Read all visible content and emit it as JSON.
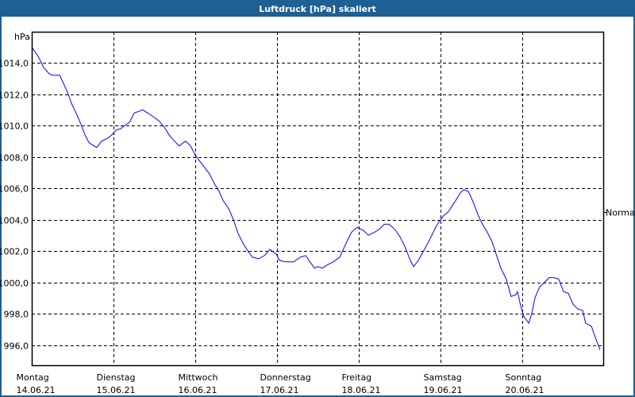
{
  "title": "Luftdruck [hPa] skaliert",
  "chart_data": {
    "type": "line",
    "title": "Luftdruck [hPa] skaliert",
    "ylabel": "hPa",
    "xlabel": "",
    "ylim": [
      995.0,
      1016.0
    ],
    "xlim_hours": [
      0,
      168
    ],
    "yticks": [
      1014,
      1012,
      1010,
      1008,
      1006,
      1004,
      1002,
      1000,
      998,
      996
    ],
    "ytick_labels": [
      "1014,0",
      "1012,0",
      "1010,0",
      "1008,0",
      "1006,0",
      "1004,0",
      "1002,0",
      "1000,0",
      "998,0",
      "996,0"
    ],
    "xticks": [
      {
        "day": "Montag",
        "date": "14.06.21",
        "hour": 0
      },
      {
        "day": "Dienstag",
        "date": "15.06.21",
        "hour": 24
      },
      {
        "day": "Mittwoch",
        "date": "16.06.21",
        "hour": 48
      },
      {
        "day": "Donnerstag",
        "date": "17.06.21",
        "hour": 72
      },
      {
        "day": "Freitag",
        "date": "18.06.21",
        "hour": 96
      },
      {
        "day": "Samstag",
        "date": "19.06.21",
        "hour": 120
      },
      {
        "day": "Sonntag",
        "date": "20.06.21",
        "hour": 144
      }
    ],
    "grid": true,
    "normal_label": "Normal",
    "normal_value": 1004.5,
    "series": [
      {
        "name": "Luftdruck",
        "color": "#0000ff",
        "x": [
          0,
          1.9,
          3.5,
          5.1,
          6.1,
          8.2,
          9.3,
          10.5,
          11.7,
          13.0,
          14.4,
          15.6,
          16.8,
          18.2,
          19.1,
          20.5,
          22.4,
          23.5,
          24.7,
          26.1,
          27.3,
          28.7,
          30.1,
          31.5,
          32.6,
          34.0,
          35.4,
          37.3,
          38.9,
          40.3,
          41.9,
          43.3,
          44.5,
          45.2,
          46.6,
          48.0,
          49.4,
          50.8,
          52.2,
          53.6,
          55.0,
          56.2,
          57.8,
          59.0,
          60.6,
          62.0,
          63.4,
          64.8,
          66.6,
          68.3,
          69.9,
          71.8,
          72.7,
          74.6,
          76.9,
          78.8,
          80.4,
          82.0,
          83.0,
          83.9,
          85.3,
          86.7,
          88.5,
          90.4,
          92.3,
          93.9,
          95.5,
          97.4,
          98.8,
          100.7,
          102.1,
          103.5,
          104.9,
          106.5,
          108.1,
          109.7,
          111.1,
          112.1,
          113.5,
          115.3,
          117.0,
          118.8,
          120.7,
          122.3,
          123.5,
          124.7,
          125.8,
          126.8,
          128.2,
          129.6,
          131.0,
          132.3,
          133.7,
          135.1,
          136.3,
          137.7,
          139.3,
          140.7,
          142.1,
          142.6,
          143.5,
          144.5,
          145.9,
          146.8,
          147.7,
          149.1,
          150.5,
          151.9,
          153.3,
          154.7,
          156.1,
          157.5,
          158.9,
          160.3,
          161.7,
          162.6,
          164.3,
          165.4,
          166.8
        ],
        "y": [
          1015.0,
          1014.4,
          1013.7,
          1013.3,
          1013.2,
          1013.2,
          1012.7,
          1012.1,
          1011.4,
          1010.8,
          1010.1,
          1009.4,
          1008.9,
          1008.7,
          1008.6,
          1009.0,
          1009.2,
          1009.4,
          1009.7,
          1009.8,
          1010.0,
          1010.2,
          1010.8,
          1010.9,
          1011.0,
          1010.8,
          1010.6,
          1010.3,
          1009.9,
          1009.4,
          1009.0,
          1008.7,
          1008.9,
          1009.0,
          1008.7,
          1008.1,
          1007.7,
          1007.3,
          1006.9,
          1006.3,
          1005.8,
          1005.2,
          1004.7,
          1004.1,
          1003.1,
          1002.5,
          1002.0,
          1001.6,
          1001.5,
          1001.7,
          1002.1,
          1001.8,
          1001.4,
          1001.3,
          1001.3,
          1001.6,
          1001.7,
          1001.2,
          1000.9,
          1001.0,
          1000.9,
          1001.1,
          1001.3,
          1001.6,
          1002.5,
          1003.2,
          1003.5,
          1003.3,
          1003.0,
          1003.2,
          1003.4,
          1003.7,
          1003.7,
          1003.4,
          1002.9,
          1002.2,
          1001.4,
          1001.0,
          1001.4,
          1002.1,
          1002.8,
          1003.6,
          1004.2,
          1004.5,
          1004.9,
          1005.3,
          1005.7,
          1005.9,
          1005.8,
          1005.1,
          1004.3,
          1003.7,
          1003.2,
          1002.6,
          1001.8,
          1000.9,
          1000.2,
          999.1,
          999.2,
          999.4,
          998.5,
          997.8,
          997.4,
          998.0,
          999.0,
          999.7,
          1000.0,
          1000.3,
          1000.3,
          1000.2,
          999.4,
          999.3,
          998.6,
          998.3,
          998.2,
          997.4,
          997.2,
          996.5,
          995.7
        ]
      }
    ]
  }
}
